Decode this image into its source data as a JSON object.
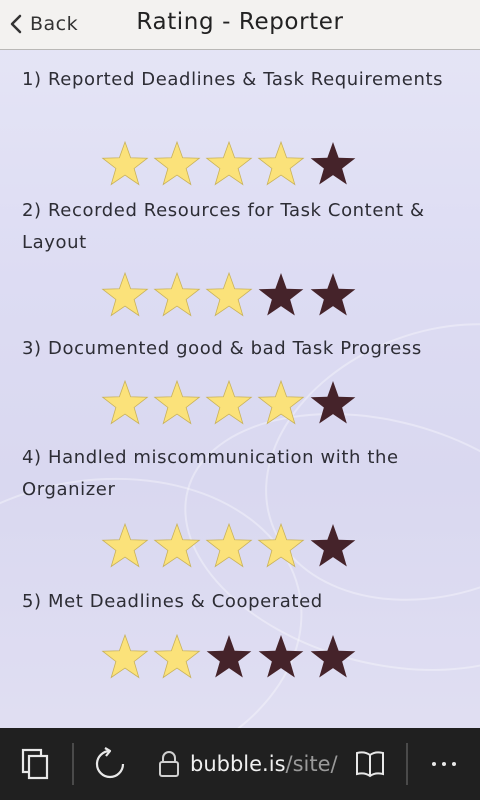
{
  "header": {
    "back_label": "Back",
    "title": "Rating - Reporter"
  },
  "ratings": [
    {
      "question": "1) Reported Deadlines & Task Requirements",
      "value": 4,
      "max": 5
    },
    {
      "question": "2) Recorded Resources for Task Content & Layout",
      "value": 3,
      "max": 5
    },
    {
      "question": "3) Documented good & bad Task Progress",
      "value": 4,
      "max": 5
    },
    {
      "question": "4) Handled miscommunication with the Organizer",
      "value": 4,
      "max": 5
    },
    {
      "question": "5) Met Deadlines & Cooperated",
      "value": 2,
      "max": 5
    }
  ],
  "colors": {
    "star_filled": "#fbe27a",
    "star_empty": "#45232a"
  },
  "browser_bar": {
    "domain": "bubble.is",
    "path": "/site/",
    "icons": [
      "tabs-icon",
      "reload-icon",
      "lock-icon",
      "reading-view-icon",
      "more-icon"
    ]
  }
}
